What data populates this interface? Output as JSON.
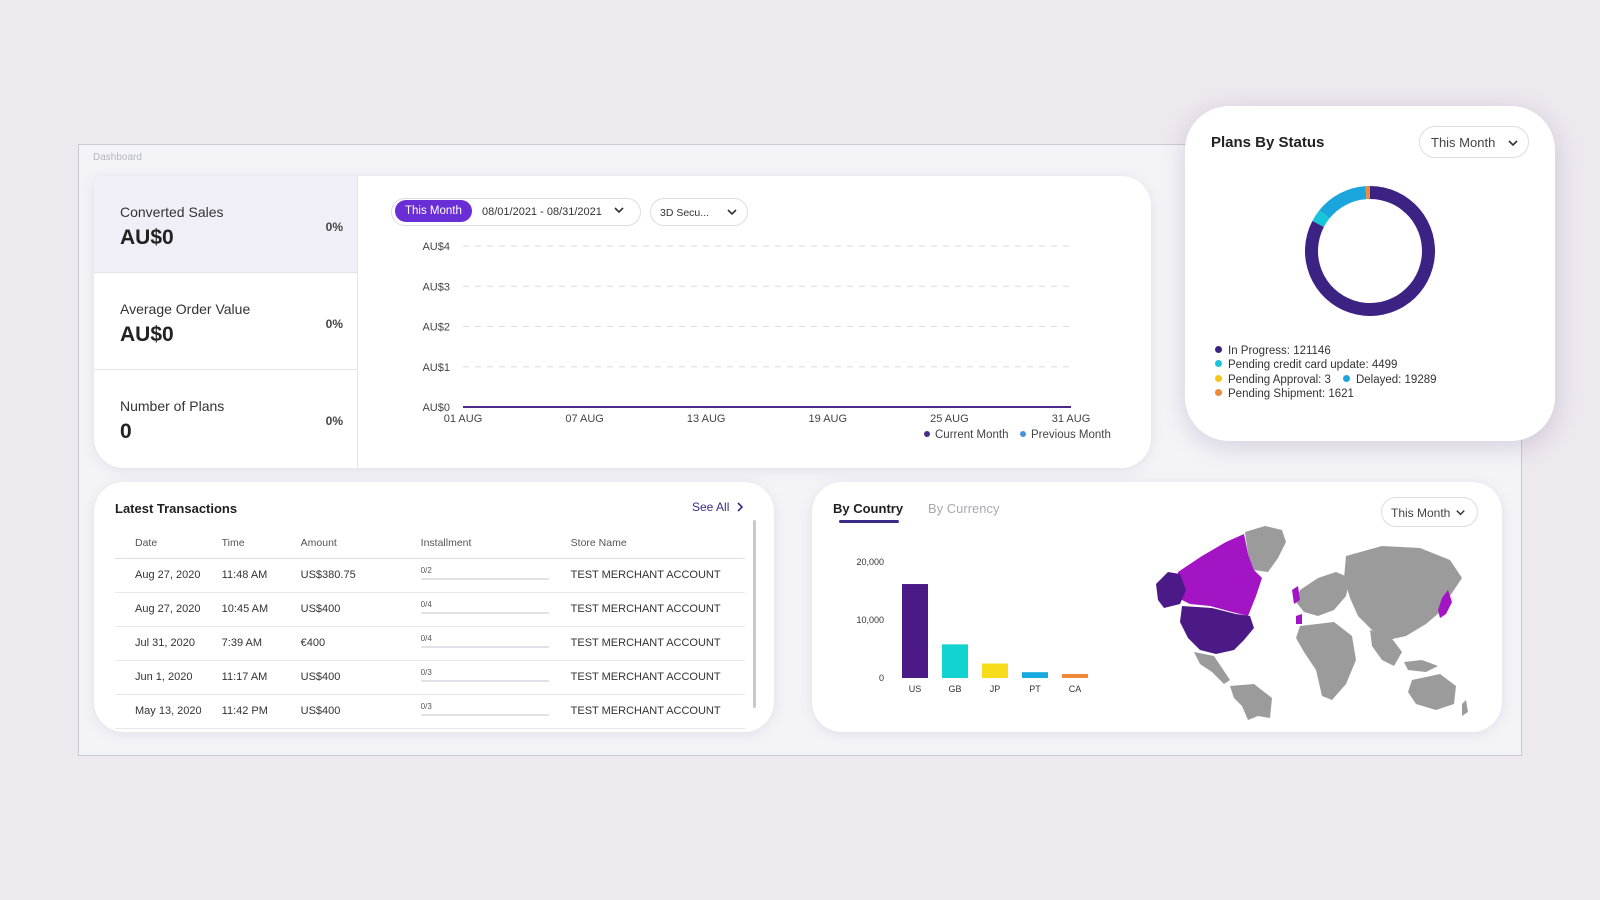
{
  "breadcrumb": "Dashboard",
  "kpis": [
    {
      "label": "Converted Sales",
      "value": "AU$0",
      "change": "0%"
    },
    {
      "label": "Average Order Value",
      "value": "AU$0",
      "change": "0%"
    },
    {
      "label": "Number of Plans",
      "value": "0",
      "change": "0%"
    }
  ],
  "sales_chart_controls": {
    "period_pill": "This Month",
    "date_range": "08/01/2021 - 08/31/2021",
    "security_filter": "3D Secu..."
  },
  "plans_by_status": {
    "title": "Plans By Status",
    "period": "This Month",
    "legend_lines": [
      [
        {
          "text": "In Progress: 121146",
          "color": "#3b2283"
        }
      ],
      [
        {
          "text": "Pending credit card update: 4499",
          "color": "#16c6d8"
        }
      ],
      [
        {
          "text": "Pending Approval: 3",
          "color": "#f5c518"
        },
        {
          "text": "Delayed: 19289",
          "color": "#1aa6dd"
        }
      ],
      [
        {
          "text": "Pending Shipment: 1621",
          "color": "#ee8a3a"
        }
      ]
    ]
  },
  "transactions": {
    "title": "Latest Transactions",
    "see_all": "See All",
    "columns": [
      "Date",
      "Time",
      "Amount",
      "Installment",
      "Store Name"
    ],
    "rows": [
      {
        "date": "Aug 27, 2020",
        "time": "11:48 AM",
        "amount": "US$380.75",
        "installment": "0/2",
        "progress": 0,
        "store": "TEST MERCHANT ACCOUNT"
      },
      {
        "date": "Aug 27, 2020",
        "time": "10:45 AM",
        "amount": "US$400",
        "installment": "0/4",
        "progress": 0,
        "store": "TEST MERCHANT ACCOUNT"
      },
      {
        "date": "Jul 31, 2020",
        "time": "7:39 AM",
        "amount": "€400",
        "installment": "0/4",
        "progress": 0,
        "store": "TEST MERCHANT ACCOUNT"
      },
      {
        "date": "Jun 1, 2020",
        "time": "11:17 AM",
        "amount": "US$400",
        "installment": "0/3",
        "progress": 0,
        "store": "TEST MERCHANT ACCOUNT"
      },
      {
        "date": "May 13, 2020",
        "time": "11:42 PM",
        "amount": "US$400",
        "installment": "0/3",
        "progress": 0,
        "store": "TEST MERCHANT ACCOUNT"
      }
    ]
  },
  "geo": {
    "tab_active": "By Country",
    "tab_inactive": "By Currency",
    "period": "This Month"
  },
  "colors": {
    "accent": "#6a2ed6",
    "primary_dark": "#3b2283",
    "map_highlight": "#a314c4",
    "map_dark": "#4b1a86",
    "map_base": "#9b9b9b"
  },
  "chart_data": [
    {
      "type": "line",
      "x": [
        "01 AUG",
        "07 AUG",
        "13 AUG",
        "19 AUG",
        "25 AUG",
        "31 AUG"
      ],
      "yticks": [
        "AU$0",
        "AU$1",
        "AU$2",
        "AU$3",
        "AU$4"
      ],
      "ylim": [
        0,
        4
      ],
      "grid": true,
      "legend": "bottom-right",
      "series": [
        {
          "name": "Current Month",
          "color": "#4b2a8a",
          "values": [
            0,
            0,
            0,
            0,
            0,
            0
          ]
        },
        {
          "name": "Previous Month",
          "color": "#4a90e2",
          "values": [
            0,
            0,
            0,
            0,
            0,
            0
          ]
        }
      ]
    },
    {
      "type": "pie",
      "labels": [
        "In Progress",
        "Pending credit card update",
        "Pending Approval",
        "Delayed",
        "Pending Shipment"
      ],
      "values": [
        121146,
        4499,
        3,
        19289,
        1621
      ],
      "colors": [
        "#3b2283",
        "#16c6d8",
        "#f5c518",
        "#1aa6dd",
        "#ee8a3a"
      ]
    },
    {
      "type": "bar",
      "categories": [
        "US",
        "GB",
        "JP",
        "PT",
        "CA"
      ],
      "values": [
        16200,
        5800,
        2500,
        1000,
        700
      ],
      "colors": [
        "#4b1a86",
        "#12d3cf",
        "#f7dc1b",
        "#17a9e0",
        "#ef8a3a"
      ],
      "yticks": [
        "0",
        "10,000",
        "20,000"
      ],
      "ylim": [
        0,
        20000
      ]
    }
  ]
}
